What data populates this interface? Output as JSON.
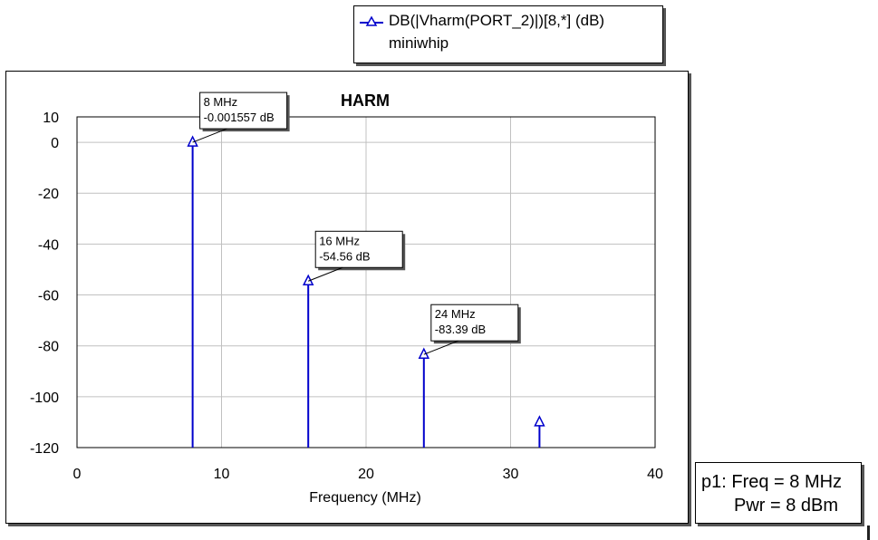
{
  "legend": {
    "series_label": "DB(|Vharm(PORT_2)|)[8,*] (dB)",
    "sub_label": "miniwhip"
  },
  "status": {
    "line1": "p1: Freq = 8 MHz",
    "line2": "Pwr = 8 dBm"
  },
  "colors": {
    "series": "#0000cc",
    "grid": "#c0c0c0",
    "axis": "#000000"
  },
  "icons": {
    "series_marker": "triangle-marker-icon"
  },
  "chart_data": {
    "type": "bar",
    "style": "stem",
    "title": "HARM",
    "xlabel": "Frequency (MHz)",
    "ylabel": "",
    "xlim": [
      0,
      40
    ],
    "ylim": [
      -120,
      10
    ],
    "xticks": [
      0,
      10,
      20,
      30,
      40
    ],
    "yticks": [
      10,
      0,
      -20,
      -40,
      -60,
      -80,
      -100,
      -120
    ],
    "grid": true,
    "legend_position": "top",
    "series": [
      {
        "name": "DB(|Vharm(PORT_2)|)[8,*] (dB)",
        "x": [
          8,
          16,
          24,
          32
        ],
        "values": [
          -0.001557,
          -54.56,
          -83.39,
          -110
        ]
      }
    ],
    "annotations": [
      {
        "x": 8,
        "y": -0.001557,
        "line1": "8 MHz",
        "line2": "-0.001557 dB"
      },
      {
        "x": 16,
        "y": -54.56,
        "line1": "16 MHz",
        "line2": "-54.56 dB"
      },
      {
        "x": 24,
        "y": -83.39,
        "line1": "24 MHz",
        "line2": "-83.39 dB"
      }
    ]
  }
}
